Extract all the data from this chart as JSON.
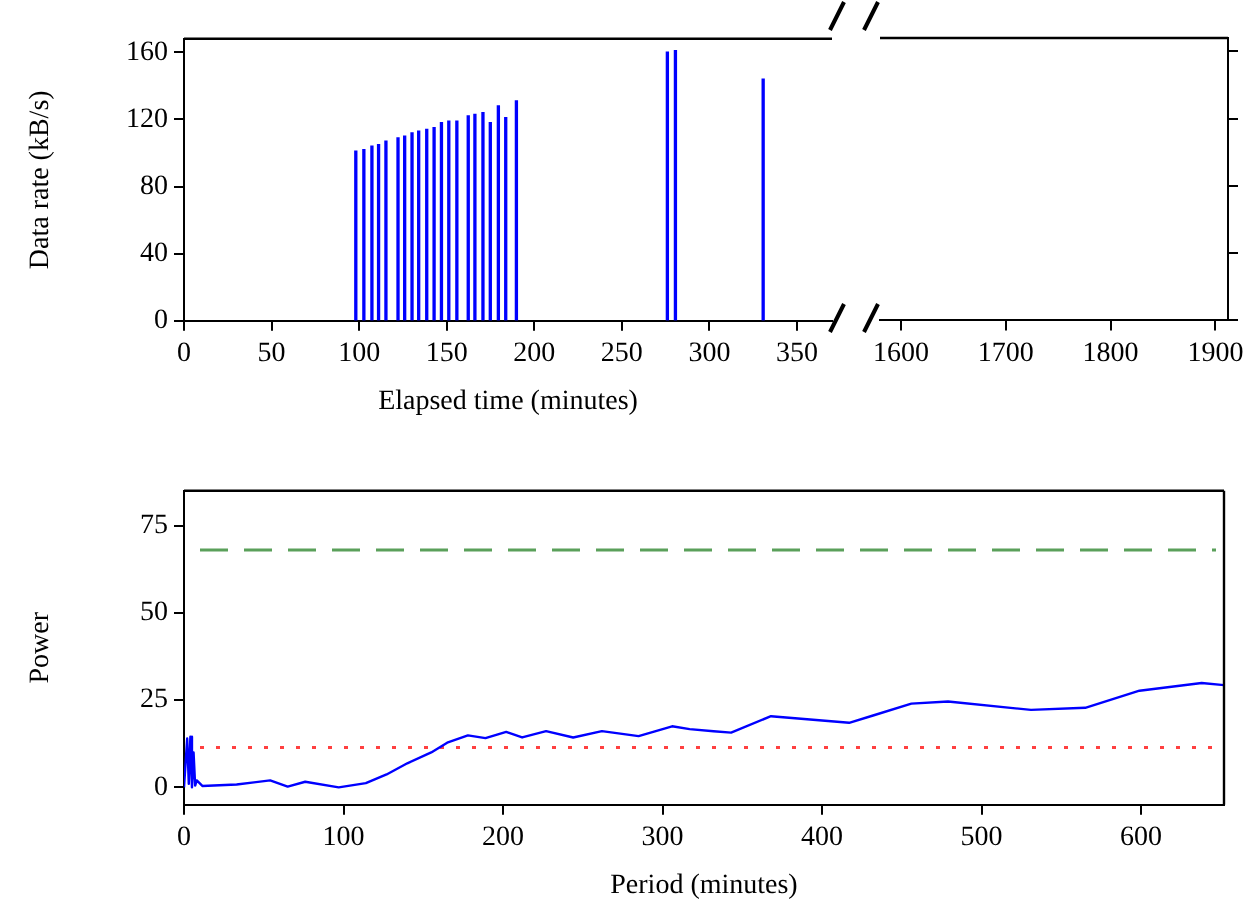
{
  "chart_data": [
    {
      "type": "bar",
      "ylabel": "Data rate (kB/s)",
      "xlabel": "Elapsed time (minutes)",
      "color": "#0000ff",
      "x": [
        98.1,
        102.7,
        107.3,
        111.1,
        115.3,
        122.2,
        126,
        130.2,
        134,
        138.6,
        142.8,
        147,
        151.2,
        155.8,
        162.3,
        166.1,
        170.7,
        174.9,
        179.5,
        183.7,
        189.8,
        276,
        280.6,
        330.7
      ],
      "values": [
        101,
        102,
        104,
        105,
        107,
        109,
        110,
        112,
        113,
        114,
        115,
        118,
        119,
        119,
        122,
        123,
        124,
        118,
        128,
        121,
        131,
        160,
        161,
        144
      ],
      "xlim": [
        0,
        370
      ],
      "xticks": [
        0,
        50,
        100,
        150,
        200,
        250,
        300,
        350
      ],
      "ylim": [
        0,
        168
      ],
      "yticks": [
        0,
        40,
        80,
        120,
        160
      ]
    },
    {
      "type": "bar",
      "xlim": [
        1580,
        1912
      ],
      "xticks": [
        1600,
        1700,
        1800,
        1900
      ],
      "ylim": [
        0,
        168
      ],
      "yticks": [
        0,
        40,
        80,
        120,
        160
      ],
      "tick_labels": "x"
    },
    {
      "type": "line",
      "xlabel": "Period (minutes)",
      "ylabel": "Power",
      "color": "#0000ff",
      "x": [
        0,
        1,
        2,
        3,
        4,
        5,
        6,
        7,
        8,
        11.5,
        33,
        54,
        65,
        76,
        97,
        114,
        127,
        140,
        155,
        165,
        178,
        189,
        202,
        212,
        227,
        244,
        262,
        285,
        306,
        317,
        332,
        343,
        368,
        417,
        432,
        456,
        479,
        531,
        565,
        599,
        638,
        652
      ],
      "values": [
        0,
        0,
        14,
        1,
        14.5,
        0,
        10,
        0.5,
        2,
        0.4,
        0.8,
        2,
        0.2,
        1.6,
        0,
        1.2,
        3.7,
        6.9,
        10,
        12.8,
        14.9,
        14.1,
        15.9,
        14.3,
        16.1,
        14.3,
        16.1,
        14.7,
        17.5,
        16.7,
        16.1,
        15.7,
        20.4,
        18.5,
        20.6,
        24,
        24.6,
        22.2,
        22.8,
        27.7,
        29.9,
        29.3
      ],
      "xlim": [
        0,
        652
      ],
      "xticks": [
        0,
        100,
        200,
        300,
        400,
        500,
        600
      ],
      "ylim": [
        -5,
        85
      ],
      "yticks": [
        0,
        25,
        50,
        75
      ],
      "ref_lines": [
        {
          "axis": "y",
          "value": 68,
          "color": "#5aa05a",
          "line_style": "dashed"
        },
        {
          "axis": "y",
          "value": 11.4,
          "color": "#ff4040",
          "line_style": "dotted"
        }
      ]
    }
  ]
}
